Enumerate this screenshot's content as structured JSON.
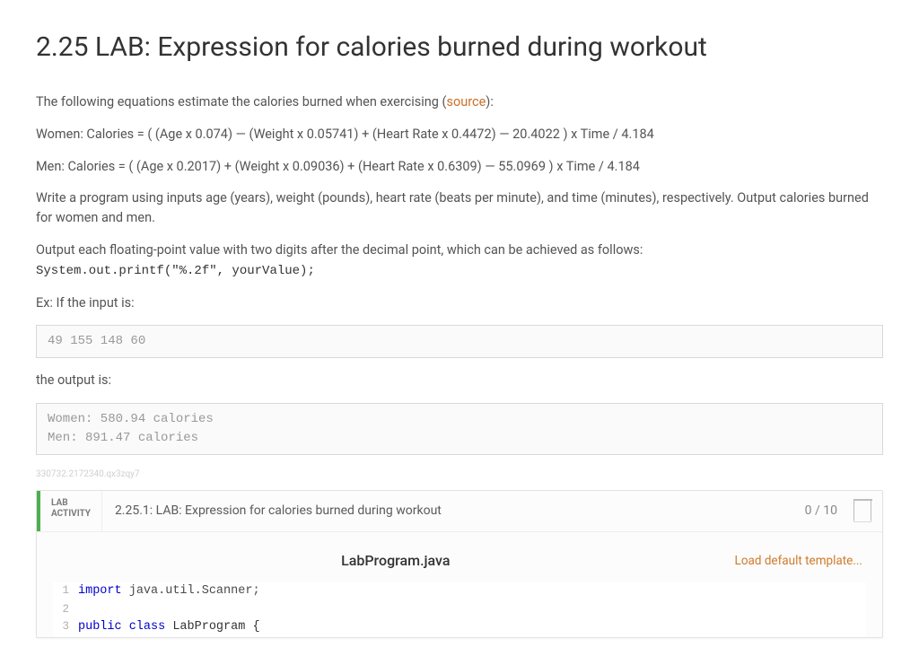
{
  "title": "2.25 LAB: Expression for calories burned during workout",
  "intro": {
    "p1_prefix": "The following equations estimate the calories burned when exercising (",
    "p1_link": "source",
    "p1_suffix": "):",
    "eq_women": "Women: Calories = ( (Age x 0.074) — (Weight x 0.05741) + (Heart Rate x 0.4472) — 20.4022 ) x Time / 4.184",
    "eq_men": "Men: Calories = ( (Age x 0.2017) + (Weight x 0.09036) + (Heart Rate x 0.6309) — 55.0969 ) x Time / 4.184",
    "instr": "Write a program using inputs age (years), weight (pounds), heart rate (beats per minute), and time (minutes), respectively. Output calories burned for women and men.",
    "format_text": "Output each floating-point value with two digits after the decimal point, which can be achieved as follows:",
    "format_code": "System.out.printf(\"%.2f\", yourValue);",
    "ex_label": "Ex: If the input is:",
    "input_sample": "49 155 148 60",
    "output_label": "the output is:",
    "output_sample": "Women: 580.94 calories\nMen: 891.47 calories"
  },
  "watermark": "330732.2172340.qx3zqy7",
  "activity": {
    "label_line1": "LAB",
    "label_line2": "ACTIVITY",
    "title": "2.25.1: LAB: Expression for calories burned during workout",
    "score": "0 / 10"
  },
  "editor": {
    "filename": "LabProgram.java",
    "load_template": "Load default template...",
    "lines": [
      {
        "n": "1",
        "tokens": [
          {
            "t": "import ",
            "c": "kw"
          },
          {
            "t": "java.util.Scanner;",
            "c": ""
          }
        ]
      },
      {
        "n": "2",
        "tokens": [
          {
            "t": "",
            "c": ""
          }
        ]
      },
      {
        "n": "3",
        "tokens": [
          {
            "t": "public class ",
            "c": "kw"
          },
          {
            "t": "LabProgram {",
            "c": "cls"
          }
        ]
      }
    ]
  },
  "colors": {
    "link": "#c8702a",
    "accent": "#4caf50",
    "text": "#4a4a4a",
    "muted": "#999999"
  }
}
